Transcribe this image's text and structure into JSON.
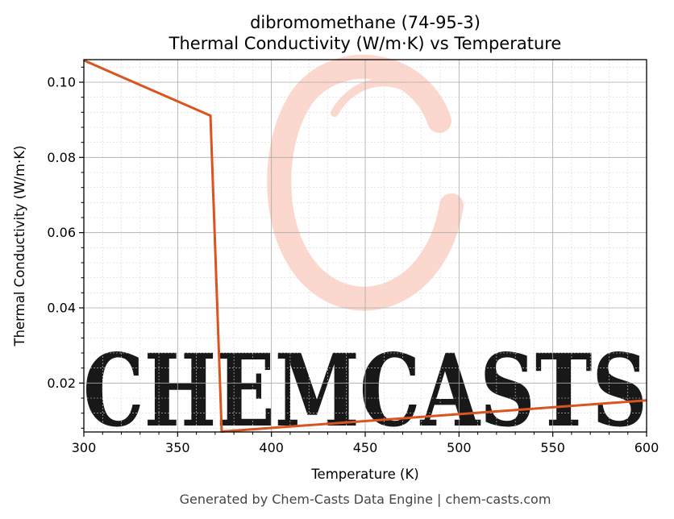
{
  "chart_data": {
    "type": "line",
    "title": "dibromomethane (74-95-3)",
    "subtitle": "Thermal Conductivity (W/m·K) vs Temperature",
    "xlabel": "Temperature (K)",
    "ylabel": "Thermal Conductivity (W/m·K)",
    "xlim": [
      300,
      600
    ],
    "ylim": [
      0.007,
      0.106
    ],
    "x_ticks": [
      "300",
      "350",
      "400",
      "450",
      "500",
      "550",
      "600"
    ],
    "y_ticks": [
      "0.02",
      "0.04",
      "0.06",
      "0.08",
      "0.10"
    ],
    "grid": true,
    "series": [
      {
        "color": "#d9541e",
        "points": [
          {
            "x": 300,
            "y": 0.1058
          },
          {
            "x": 367.5,
            "y": 0.0911
          },
          {
            "x": 373.5,
            "y": 0.0071
          },
          {
            "x": 600,
            "y": 0.0154
          }
        ]
      }
    ]
  },
  "watermark": {
    "text": "CHEMCASTS",
    "color": "#fcd3c8"
  },
  "footer": "Generated by Chem-Casts Data Engine | chem-casts.com"
}
